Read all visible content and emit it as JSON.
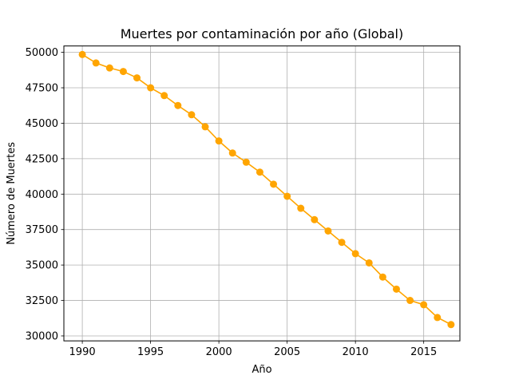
{
  "chart_data": {
    "type": "line",
    "title": "Muertes por contaminación por año (Global)",
    "xlabel": "Año",
    "ylabel": "Número de Muertes",
    "xlim": [
      1988.65,
      2017.65
    ],
    "ylim": [
      29650,
      50450
    ],
    "xticks": [
      1990,
      1995,
      2000,
      2005,
      2010,
      2015
    ],
    "yticks": [
      30000,
      32500,
      35000,
      37500,
      40000,
      42500,
      45000,
      47500,
      50000
    ],
    "grid": true,
    "series": [
      {
        "color": "#ffa500",
        "marker": "circle",
        "x": [
          1990,
          1991,
          1992,
          1993,
          1994,
          1995,
          1996,
          1997,
          1998,
          1999,
          2000,
          2001,
          2002,
          2003,
          2004,
          2005,
          2006,
          2007,
          2008,
          2009,
          2010,
          2011,
          2012,
          2013,
          2014,
          2015,
          2016,
          2017
        ],
        "y": [
          49850,
          49250,
          48900,
          48650,
          48200,
          47500,
          46950,
          46250,
          45600,
          44750,
          43750,
          42900,
          42250,
          41550,
          40700,
          39850,
          39000,
          38200,
          37400,
          36600,
          35800,
          35150,
          34150,
          33300,
          32500,
          32200,
          31300,
          30800
        ]
      }
    ]
  }
}
